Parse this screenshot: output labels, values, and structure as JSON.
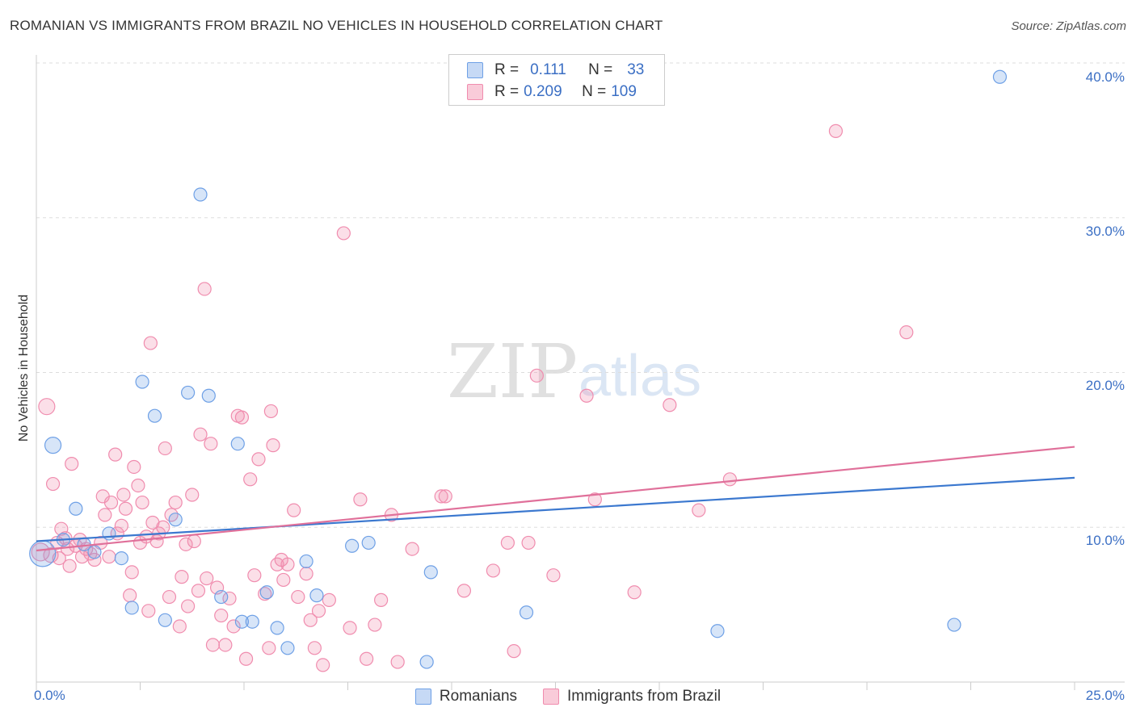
{
  "title": "ROMANIAN VS IMMIGRANTS FROM BRAZIL NO VEHICLES IN HOUSEHOLD CORRELATION CHART",
  "source": "Source: ZipAtlas.com",
  "watermark": {
    "zip": "ZIP",
    "atlas": "atlas"
  },
  "legend": {
    "r_label": "R =",
    "n_label": "N =",
    "rows": [
      {
        "r": "0.111",
        "n": "33",
        "color": "#6ea0e6"
      },
      {
        "r": "0.209",
        "n": "109",
        "color": "#f08cae"
      }
    ]
  },
  "bottom_legend": [
    "Romanians",
    "Immigrants from Brazil"
  ],
  "chart_data": {
    "type": "scatter",
    "xlabel": "",
    "ylabel": "No Vehicles in Household",
    "xlim": [
      0,
      25
    ],
    "ylim": [
      0,
      40
    ],
    "x_tick_labels": [
      "0.0%",
      "25.0%"
    ],
    "y_ticks": [
      10,
      20,
      30,
      40
    ],
    "y_tick_labels": [
      "10.0%",
      "20.0%",
      "30.0%",
      "40.0%"
    ],
    "grid": true,
    "series": [
      {
        "name": "Romanians",
        "color": "#6ea0e6",
        "trend": {
          "x": [
            0,
            25
          ],
          "y": [
            9.1,
            13.2
          ]
        },
        "points": [
          [
            0.15,
            8.3,
            16
          ],
          [
            0.4,
            15.3,
            10
          ],
          [
            0.65,
            9.2,
            8
          ],
          [
            0.95,
            11.2,
            8
          ],
          [
            1.15,
            8.9,
            8
          ],
          [
            1.4,
            8.4,
            8
          ],
          [
            1.75,
            9.6,
            8
          ],
          [
            2.05,
            8.0,
            8
          ],
          [
            2.3,
            4.8,
            8
          ],
          [
            2.55,
            19.4,
            8
          ],
          [
            2.85,
            17.2,
            8
          ],
          [
            3.1,
            4.0,
            8
          ],
          [
            3.35,
            10.5,
            8
          ],
          [
            3.65,
            18.7,
            8
          ],
          [
            3.95,
            31.5,
            8
          ],
          [
            4.15,
            18.5,
            8
          ],
          [
            4.45,
            5.5,
            8
          ],
          [
            4.85,
            15.4,
            8
          ],
          [
            4.95,
            3.9,
            8
          ],
          [
            5.2,
            3.9,
            8
          ],
          [
            5.55,
            5.8,
            8
          ],
          [
            5.8,
            3.5,
            8
          ],
          [
            6.05,
            2.2,
            8
          ],
          [
            6.5,
            7.8,
            8
          ],
          [
            6.75,
            5.6,
            8
          ],
          [
            7.6,
            8.8,
            8
          ],
          [
            8.0,
            9.0,
            8
          ],
          [
            9.4,
            1.3,
            8
          ],
          [
            9.5,
            7.1,
            8
          ],
          [
            11.8,
            4.5,
            8
          ],
          [
            16.4,
            3.3,
            8
          ],
          [
            22.1,
            3.7,
            8
          ],
          [
            23.2,
            39.1,
            8
          ]
        ]
      },
      {
        "name": "Immigrants from Brazil",
        "color": "#f08cae",
        "trend": {
          "x": [
            0,
            25
          ],
          "y": [
            8.5,
            15.2
          ]
        },
        "points": [
          [
            0.1,
            8.4,
            11
          ],
          [
            0.25,
            17.8,
            10
          ],
          [
            0.35,
            8.2,
            9
          ],
          [
            0.4,
            12.8,
            8
          ],
          [
            0.5,
            9.0,
            8
          ],
          [
            0.55,
            8.0,
            8
          ],
          [
            0.6,
            9.9,
            8
          ],
          [
            0.7,
            9.3,
            8
          ],
          [
            0.75,
            8.6,
            8
          ],
          [
            0.8,
            7.5,
            8
          ],
          [
            0.85,
            14.1,
            8
          ],
          [
            0.95,
            8.8,
            8
          ],
          [
            1.05,
            9.2,
            8
          ],
          [
            1.1,
            8.1,
            8
          ],
          [
            1.2,
            8.6,
            8
          ],
          [
            1.3,
            8.3,
            8
          ],
          [
            1.4,
            7.9,
            8
          ],
          [
            1.55,
            9.0,
            8
          ],
          [
            1.6,
            12.0,
            8
          ],
          [
            1.65,
            10.8,
            8
          ],
          [
            1.75,
            8.1,
            8
          ],
          [
            1.8,
            11.6,
            8
          ],
          [
            1.9,
            14.7,
            8
          ],
          [
            1.95,
            9.6,
            8
          ],
          [
            2.05,
            10.1,
            8
          ],
          [
            2.1,
            12.1,
            8
          ],
          [
            2.15,
            11.2,
            8
          ],
          [
            2.25,
            5.6,
            8
          ],
          [
            2.3,
            7.1,
            8
          ],
          [
            2.35,
            13.9,
            8
          ],
          [
            2.45,
            12.7,
            8
          ],
          [
            2.5,
            9.0,
            8
          ],
          [
            2.55,
            11.6,
            8
          ],
          [
            2.65,
            9.4,
            8
          ],
          [
            2.7,
            4.6,
            8
          ],
          [
            2.75,
            21.9,
            8
          ],
          [
            2.8,
            10.3,
            8
          ],
          [
            2.9,
            9.1,
            8
          ],
          [
            2.95,
            9.6,
            8
          ],
          [
            3.05,
            10.0,
            8
          ],
          [
            3.1,
            15.1,
            8
          ],
          [
            3.2,
            5.5,
            8
          ],
          [
            3.25,
            10.8,
            8
          ],
          [
            3.35,
            11.6,
            8
          ],
          [
            3.45,
            3.6,
            8
          ],
          [
            3.5,
            6.8,
            8
          ],
          [
            3.6,
            8.9,
            8
          ],
          [
            3.65,
            4.9,
            8
          ],
          [
            3.75,
            12.1,
            8
          ],
          [
            3.8,
            9.1,
            8
          ],
          [
            3.9,
            5.9,
            8
          ],
          [
            3.95,
            16.0,
            8
          ],
          [
            4.05,
            25.4,
            8
          ],
          [
            4.1,
            6.7,
            8
          ],
          [
            4.2,
            15.4,
            8
          ],
          [
            4.25,
            2.4,
            8
          ],
          [
            4.35,
            6.1,
            8
          ],
          [
            4.45,
            4.3,
            8
          ],
          [
            4.55,
            2.4,
            8
          ],
          [
            4.65,
            5.4,
            8
          ],
          [
            4.75,
            3.6,
            8
          ],
          [
            4.85,
            17.2,
            8
          ],
          [
            4.95,
            17.1,
            8
          ],
          [
            5.05,
            1.5,
            8
          ],
          [
            5.15,
            13.1,
            8
          ],
          [
            5.25,
            6.9,
            8
          ],
          [
            5.35,
            14.4,
            8
          ],
          [
            5.5,
            5.7,
            8
          ],
          [
            5.6,
            2.2,
            8
          ],
          [
            5.65,
            17.5,
            8
          ],
          [
            5.7,
            15.3,
            8
          ],
          [
            5.8,
            7.6,
            8
          ],
          [
            5.9,
            7.9,
            8
          ],
          [
            5.95,
            6.6,
            8
          ],
          [
            6.05,
            7.6,
            8
          ],
          [
            6.2,
            11.1,
            8
          ],
          [
            6.3,
            5.5,
            8
          ],
          [
            6.5,
            7.0,
            8
          ],
          [
            6.6,
            4.0,
            8
          ],
          [
            6.7,
            2.2,
            8
          ],
          [
            6.8,
            4.6,
            8
          ],
          [
            6.9,
            1.1,
            8
          ],
          [
            7.05,
            5.3,
            8
          ],
          [
            7.4,
            29.0,
            8
          ],
          [
            7.55,
            3.5,
            8
          ],
          [
            7.8,
            11.8,
            8
          ],
          [
            7.95,
            1.5,
            8
          ],
          [
            8.15,
            3.7,
            8
          ],
          [
            8.3,
            5.3,
            8
          ],
          [
            8.55,
            10.8,
            8
          ],
          [
            8.7,
            1.3,
            8
          ],
          [
            9.05,
            8.6,
            8
          ],
          [
            9.75,
            12.0,
            8
          ],
          [
            9.85,
            12.0,
            8
          ],
          [
            10.3,
            5.9,
            8
          ],
          [
            11.0,
            7.2,
            8
          ],
          [
            11.35,
            9.0,
            8
          ],
          [
            11.5,
            2.0,
            8
          ],
          [
            11.85,
            9.0,
            8
          ],
          [
            12.05,
            19.8,
            8
          ],
          [
            12.45,
            6.9,
            8
          ],
          [
            13.25,
            18.5,
            8
          ],
          [
            13.45,
            11.8,
            8
          ],
          [
            14.4,
            5.8,
            8
          ],
          [
            15.25,
            17.9,
            8
          ],
          [
            15.95,
            11.1,
            8
          ],
          [
            16.7,
            13.1,
            8
          ],
          [
            19.25,
            35.6,
            8
          ],
          [
            20.95,
            22.6,
            8
          ]
        ]
      }
    ]
  }
}
